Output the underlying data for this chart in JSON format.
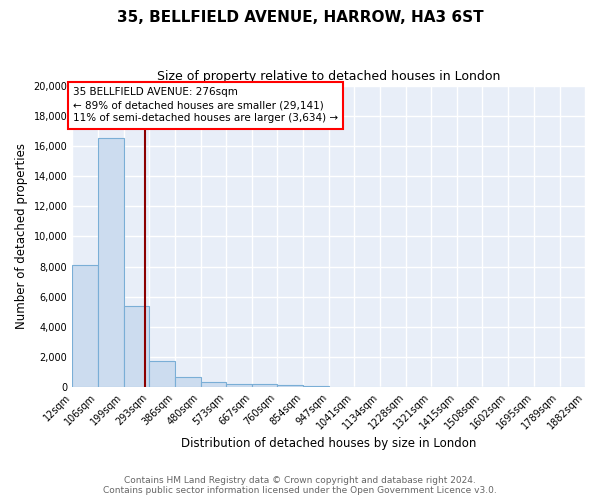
{
  "title": "35, BELLFIELD AVENUE, HARROW, HA3 6ST",
  "subtitle": "Size of property relative to detached houses in London",
  "xlabel": "Distribution of detached houses by size in London",
  "ylabel": "Number of detached properties",
  "bin_edges": [
    12,
    106,
    199,
    293,
    386,
    480,
    573,
    667,
    760,
    854,
    947,
    1041,
    1134,
    1228,
    1321,
    1415,
    1508,
    1602,
    1695,
    1789,
    1882
  ],
  "bar_heights": [
    8100,
    16500,
    5400,
    1750,
    700,
    330,
    250,
    200,
    150,
    100,
    0,
    0,
    0,
    0,
    0,
    0,
    0,
    0,
    0,
    0
  ],
  "bar_color": "#ccdcef",
  "bar_edge_color": "#7aaed6",
  "vline_x": 276,
  "vline_color": "#8b0000",
  "property_label": "35 BELLFIELD AVENUE: 276sqm",
  "annotation_line1": "← 89% of detached houses are smaller (29,141)",
  "annotation_line2": "11% of semi-detached houses are larger (3,634) →",
  "ylim": [
    0,
    20000
  ],
  "yticks": [
    0,
    2000,
    4000,
    6000,
    8000,
    10000,
    12000,
    14000,
    16000,
    18000,
    20000
  ],
  "footnote1": "Contains HM Land Registry data © Crown copyright and database right 2024.",
  "footnote2": "Contains public sector information licensed under the Open Government Licence v3.0.",
  "plot_bg_color": "#e8eef8",
  "grid_color": "#ffffff",
  "fig_bg_color": "#ffffff",
  "title_fontsize": 11,
  "subtitle_fontsize": 9,
  "axis_label_fontsize": 8.5,
  "tick_fontsize": 7,
  "annotation_fontsize": 7.5,
  "footnote_fontsize": 6.5
}
